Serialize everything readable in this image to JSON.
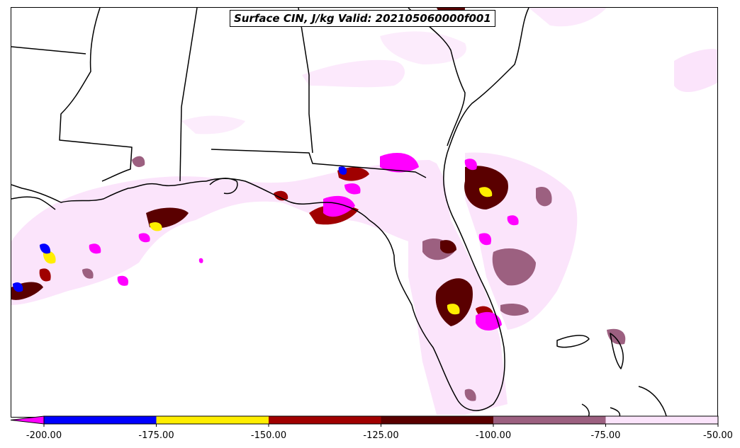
{
  "title": "Surface CIN, J/kg Valid: 202105060000f001",
  "colorbar": {
    "ticks": [
      "-200.00",
      "-175.00",
      "-150.00",
      "-125.00",
      "-100.00",
      "-75.00",
      "-50.00"
    ],
    "bins": [
      {
        "range": "< -200",
        "color": "#ff00ff"
      },
      {
        "range": "-200 to -175",
        "color": "#0000ff"
      },
      {
        "range": "-175 to -150",
        "color": "#ffee00"
      },
      {
        "range": "-150 to -125",
        "color": "#a00000"
      },
      {
        "range": "-125 to -100",
        "color": "#5a0000"
      },
      {
        "range": "-100 to -75",
        "color": "#9c6080"
      },
      {
        "range": "-75 to -50",
        "color": "#fbe4fb"
      }
    ]
  },
  "map": {
    "region": "Southeastern United States",
    "variable": "Surface CIN",
    "units": "J/kg",
    "lines": [
      "coastlines",
      "state-borders"
    ]
  }
}
